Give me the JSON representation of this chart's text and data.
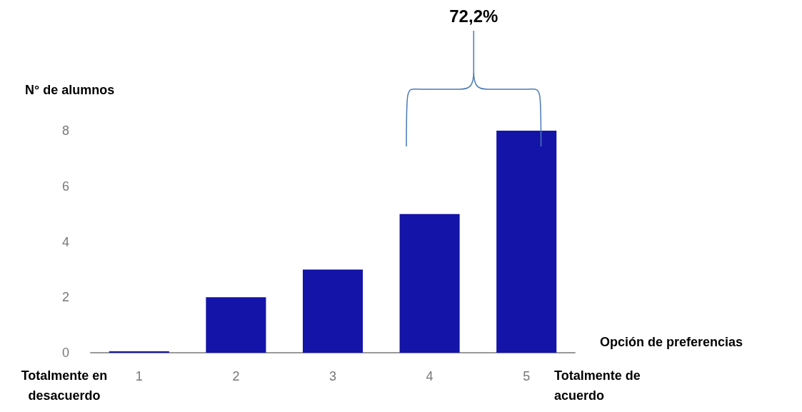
{
  "chart_data": {
    "type": "bar",
    "xlabel": "Opción de preferencias",
    "ylabel": "N° de alumnos",
    "categories": [
      "1",
      "2",
      "3",
      "4",
      "5"
    ],
    "values": [
      0,
      2,
      3,
      5,
      8
    ],
    "color": "#1414a8",
    "ylim": [
      0,
      8
    ],
    "yticks": [
      0,
      2,
      4,
      6,
      8
    ],
    "grid": false,
    "annotations": [
      "72,2%",
      "Totalmente en desacuerdo",
      "Totalmente de acuerdo"
    ]
  }
}
